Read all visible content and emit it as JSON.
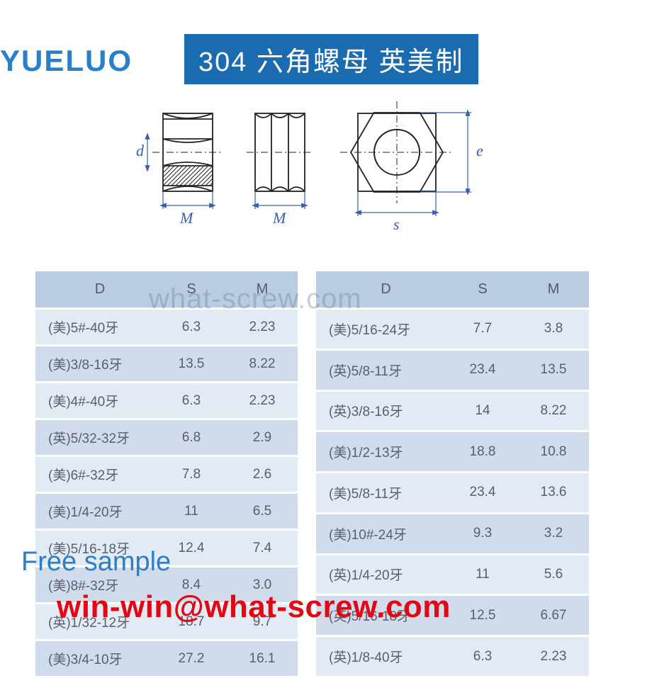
{
  "logo_text": "YUELUO",
  "banner_text": "304 六角螺母 英美制",
  "diagram_labels": {
    "d": "d",
    "M1": "M",
    "M2": "M",
    "s": "s",
    "e": "e"
  },
  "colors": {
    "brand_blue": "#2a7fc9",
    "banner_bg": "#1a6bb0",
    "banner_text": "#ffffff",
    "table_header_bg": "#b9cce3",
    "row_even_bg": "#e2eaf4",
    "row_odd_bg": "#d0dbec",
    "text_gray": "#5a5f6a",
    "email_red": "#e30613",
    "diagram_stroke": "#222222",
    "dim_blue": "#3a5ea8"
  },
  "tables": {
    "columns": [
      "D",
      "S",
      "M"
    ],
    "left": [
      {
        "D": "(美)5#-40牙",
        "S": "6.3",
        "M": "2.23"
      },
      {
        "D": "(美)3/8-16牙",
        "S": "13.5",
        "M": "8.22"
      },
      {
        "D": "(美)4#-40牙",
        "S": "6.3",
        "M": "2.23"
      },
      {
        "D": "(英)5/32-32牙",
        "S": "6.8",
        "M": "2.9"
      },
      {
        "D": "(美)6#-32牙",
        "S": "7.8",
        "M": "2.6"
      },
      {
        "D": "(美)1/4-20牙",
        "S": "11",
        "M": "6.5"
      },
      {
        "D": "(美)5/16-18牙",
        "S": "12.4",
        "M": "7.4"
      },
      {
        "D": "(美)8#-32牙",
        "S": "8.4",
        "M": "3.0"
      },
      {
        "D": "(英)1/32-12牙",
        "S": "18.7",
        "M": "9.7"
      },
      {
        "D": "(美)3/4-10牙",
        "S": "27.2",
        "M": "16.1"
      }
    ],
    "right": [
      {
        "D": "(美)5/16-24牙",
        "S": "7.7",
        "M": "3.8"
      },
      {
        "D": "(英)5/8-11牙",
        "S": "23.4",
        "M": "13.5"
      },
      {
        "D": "(英)3/8-16牙",
        "S": "14",
        "M": "8.22"
      },
      {
        "D": "(美)1/2-13牙",
        "S": "18.8",
        "M": "10.8"
      },
      {
        "D": "(美)5/8-11牙",
        "S": "23.4",
        "M": "13.6"
      },
      {
        "D": "(美)10#-24牙",
        "S": "9.3",
        "M": "3.2"
      },
      {
        "D": "(英)1/4-20牙",
        "S": "11",
        "M": "5.6"
      },
      {
        "D": "(英)5/16-18牙",
        "S": "12.5",
        "M": "6.67"
      },
      {
        "D": "(英)1/8-40牙",
        "S": "6.3",
        "M": "2.23"
      }
    ]
  },
  "watermark_center": "what-screw.com",
  "free_sample_text": "Free sample",
  "email_text": "win-win@what-screw.com"
}
